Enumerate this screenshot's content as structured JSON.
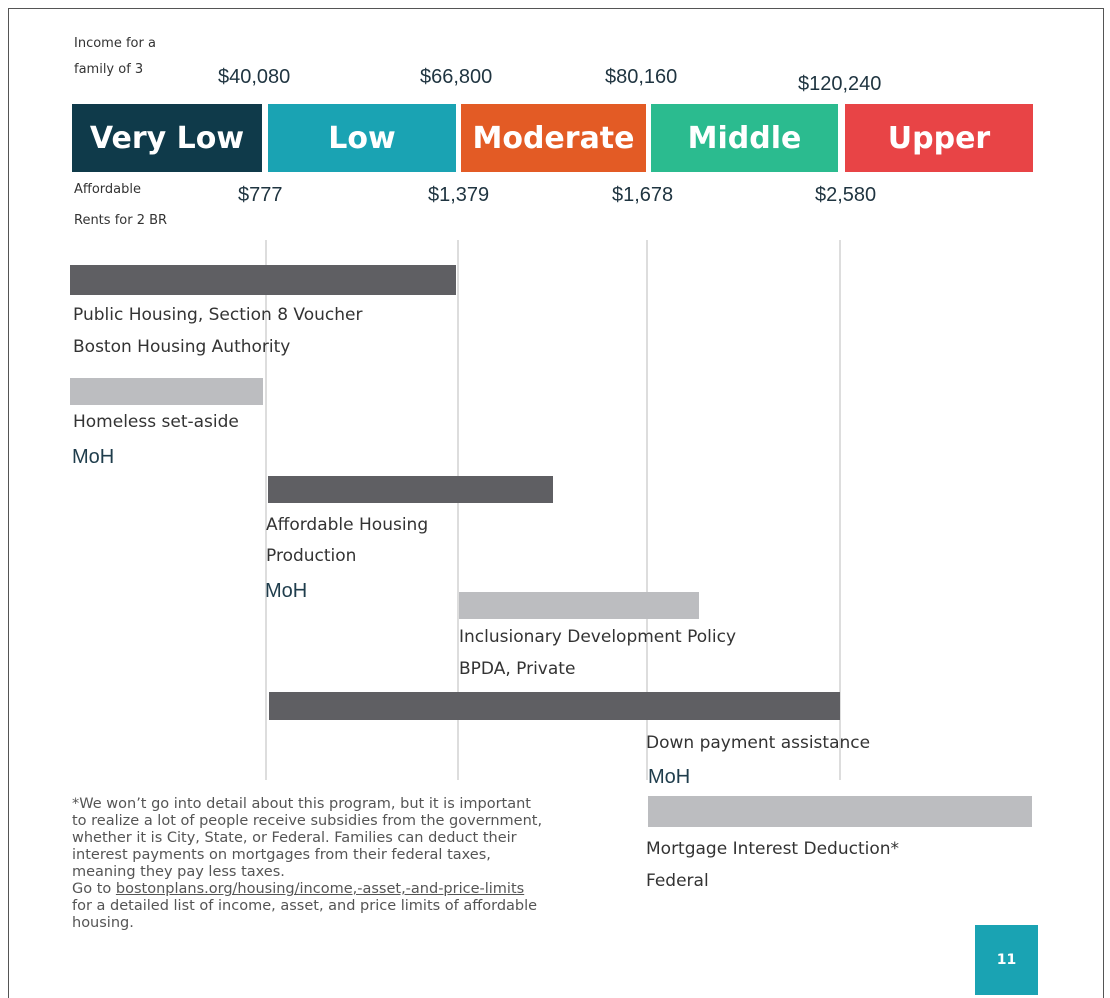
{
  "header": {
    "income_label": [
      "Income for a",
      "family of 3"
    ],
    "rent_label": [
      "Affordable",
      "Rents for 2 BR"
    ]
  },
  "bands": [
    {
      "name": "Very Low",
      "income": "$40,080",
      "rent": "$777"
    },
    {
      "name": "Low",
      "income": "$66,800",
      "rent": "$1,379"
    },
    {
      "name": "Moderate",
      "income": "$80,160",
      "rent": "$1,678"
    },
    {
      "name": "Middle",
      "income": "$120,240",
      "rent": "$2,580"
    },
    {
      "name": "Upper"
    }
  ],
  "programs": [
    {
      "name": [
        "Public Housing, Section 8 Voucher"
      ],
      "agency": "Boston Housing Authority"
    },
    {
      "name": [
        "Homeless set-aside"
      ],
      "agency": "MoH"
    },
    {
      "name": [
        "Affordable Housing",
        "Production"
      ],
      "agency": "MoH"
    },
    {
      "name": [
        "Inclusionary Development Policy"
      ],
      "agency": "BPDA, Private"
    },
    {
      "name": [
        "Down payment assistance"
      ],
      "agency": "MoH"
    },
    {
      "name": [
        "Mortgage Interest Deduction*"
      ],
      "agency": "Federal"
    }
  ],
  "footnote": {
    "lines": [
      "*We won’t go into detail about this program, but it is important",
      "to realize a lot of people receive subsidies from the government,",
      "whether it is City, State, or Federal. Families can deduct their",
      "interest payments on mortgages from their federal taxes,",
      "meaning they pay less taxes."
    ],
    "go_to": "Go to",
    "link": "bostonplans.org/housing/income,-asset,-and-price-limits",
    "rest": [
      "for a detailed list of income, asset, and price limits of affordable",
      "housing."
    ]
  },
  "page_number": "11"
}
